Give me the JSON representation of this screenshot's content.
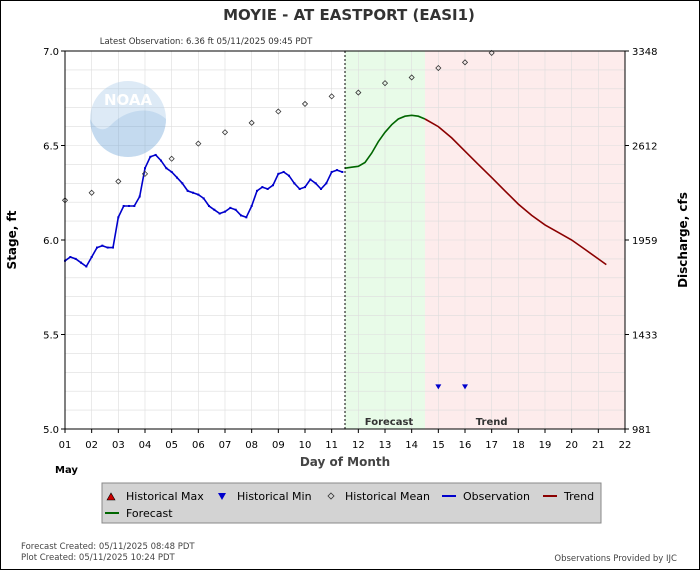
{
  "chart_data": {
    "type": "line",
    "title": "MOYIE - AT EASTPORT  (EASI1)",
    "subtitle": "Latest Observation: 6.36 ft 05/11/2025 09:45 PDT",
    "xlabel": "Day of Month",
    "xlabel_month": "May",
    "ylabel_left": "Stage, ft",
    "ylabel_right": "Discharge, cfs",
    "x_ticks": [
      "01",
      "02",
      "03",
      "04",
      "05",
      "06",
      "07",
      "08",
      "09",
      "10",
      "11",
      "12",
      "13",
      "14",
      "15",
      "16",
      "17",
      "18",
      "19",
      "20",
      "21",
      "22"
    ],
    "xlim": [
      1,
      22
    ],
    "ylim": [
      5.0,
      7.0
    ],
    "y_ticks_left": [
      "5.0",
      "5.5",
      "6.0",
      "6.5",
      "7.0"
    ],
    "y_ticks_left_values": [
      5.0,
      5.5,
      6.0,
      6.5,
      7.0
    ],
    "y_ticks_right": [
      "981",
      "1433",
      "1959",
      "2612",
      "3348"
    ],
    "current_time_x": 11.5,
    "forecast_region": {
      "label": "Forecast",
      "x0": 11.5,
      "x1": 14.5
    },
    "trend_region": {
      "label": "Trend",
      "x0": 14.5,
      "x1": 22
    },
    "grid": true,
    "colors": {
      "observation": "#0000cc",
      "forecast": "#006600",
      "trend": "#8b0000",
      "historical_min": "#0000cc",
      "historical_max": "#cc0000",
      "forecast_bg": "#e8fbe8",
      "trend_bg": "#fdecec",
      "grid": "#dddddd"
    },
    "series": [
      {
        "key": "observation",
        "name": "Observation",
        "x": [
          1.0,
          1.2,
          1.4,
          1.6,
          1.8,
          2.0,
          2.2,
          2.4,
          2.6,
          2.8,
          3.0,
          3.2,
          3.4,
          3.6,
          3.8,
          4.0,
          4.2,
          4.4,
          4.6,
          4.8,
          5.0,
          5.2,
          5.4,
          5.6,
          5.8,
          6.0,
          6.2,
          6.4,
          6.6,
          6.8,
          7.0,
          7.2,
          7.4,
          7.6,
          7.8,
          8.0,
          8.2,
          8.4,
          8.6,
          8.8,
          9.0,
          9.2,
          9.4,
          9.6,
          9.8,
          10.0,
          10.2,
          10.4,
          10.6,
          10.8,
          11.0,
          11.2,
          11.4
        ],
        "y": [
          5.89,
          5.91,
          5.9,
          5.88,
          5.86,
          5.91,
          5.96,
          5.97,
          5.96,
          5.96,
          6.12,
          6.18,
          6.18,
          6.18,
          6.23,
          6.38,
          6.44,
          6.45,
          6.42,
          6.38,
          6.36,
          6.33,
          6.3,
          6.26,
          6.25,
          6.24,
          6.22,
          6.18,
          6.16,
          6.14,
          6.15,
          6.17,
          6.16,
          6.13,
          6.12,
          6.18,
          6.26,
          6.28,
          6.27,
          6.29,
          6.35,
          6.36,
          6.34,
          6.3,
          6.27,
          6.28,
          6.32,
          6.3,
          6.27,
          6.3,
          6.36,
          6.37,
          6.36
        ]
      },
      {
        "key": "forecast",
        "name": "Forecast",
        "x": [
          11.5,
          11.75,
          12.0,
          12.25,
          12.5,
          12.75,
          13.0,
          13.25,
          13.5,
          13.75,
          14.0,
          14.25,
          14.5
        ],
        "y": [
          6.38,
          6.385,
          6.39,
          6.41,
          6.46,
          6.52,
          6.57,
          6.61,
          6.64,
          6.655,
          6.66,
          6.655,
          6.64
        ]
      },
      {
        "key": "trend",
        "name": "Trend",
        "x": [
          14.5,
          15.0,
          15.5,
          16.0,
          16.5,
          17.0,
          17.5,
          18.0,
          18.5,
          19.0,
          19.5,
          20.0,
          20.5,
          21.0,
          21.3
        ],
        "y": [
          6.64,
          6.6,
          6.54,
          6.47,
          6.4,
          6.33,
          6.26,
          6.19,
          6.13,
          6.08,
          6.04,
          6.0,
          5.95,
          5.9,
          5.87
        ]
      },
      {
        "key": "historical_mean",
        "name": "Historical Mean",
        "x": [
          1,
          2,
          3,
          4,
          5,
          6,
          7,
          8,
          9,
          10,
          11,
          12,
          13,
          14,
          15,
          16,
          17
        ],
        "y": [
          6.21,
          6.25,
          6.31,
          6.35,
          6.43,
          6.51,
          6.57,
          6.62,
          6.68,
          6.72,
          6.76,
          6.78,
          6.83,
          6.86,
          6.91,
          6.94,
          6.99
        ]
      },
      {
        "key": "historical_min",
        "name": "Historical Min",
        "x": [
          15,
          16
        ],
        "y": [
          5.22,
          5.22
        ]
      },
      {
        "key": "historical_max",
        "name": "Historical Max",
        "x": [],
        "y": []
      }
    ],
    "legend": {
      "placement": "bottom",
      "entries": [
        {
          "key": "historical_max",
          "label": "Historical Max",
          "symbol": "triangle-up"
        },
        {
          "key": "historical_min",
          "label": "Historical Min",
          "symbol": "triangle-down"
        },
        {
          "key": "historical_mean",
          "label": "Historical Mean",
          "symbol": "diamond"
        },
        {
          "key": "observation",
          "label": "Observation",
          "symbol": "line"
        },
        {
          "key": "trend",
          "label": "Trend",
          "symbol": "line"
        },
        {
          "key": "forecast",
          "label": "Forecast",
          "symbol": "line"
        }
      ]
    },
    "watermark": "NOAA"
  },
  "footer": {
    "forecast_created": "Forecast Created: 05/11/2025 08:48 PDT",
    "plot_created": "Plot Created: 05/11/2025 10:24 PDT",
    "provider": "Observations Provided by IJC"
  }
}
